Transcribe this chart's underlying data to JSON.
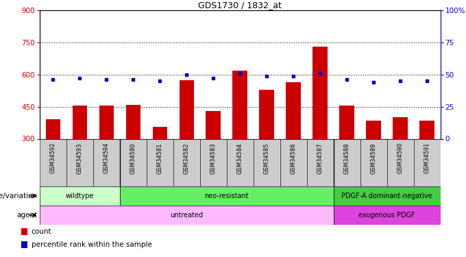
{
  "title": "GDS1730 / 1832_at",
  "samples": [
    "GSM34592",
    "GSM34593",
    "GSM34594",
    "GSM34580",
    "GSM34581",
    "GSM34582",
    "GSM34583",
    "GSM34584",
    "GSM34585",
    "GSM34586",
    "GSM34587",
    "GSM34588",
    "GSM34589",
    "GSM34590",
    "GSM34591"
  ],
  "counts": [
    390,
    455,
    455,
    460,
    355,
    575,
    430,
    620,
    530,
    565,
    730,
    455,
    385,
    400,
    385
  ],
  "percentile": [
    46,
    47,
    46,
    46,
    45,
    50,
    47,
    51,
    49,
    49,
    51,
    46,
    44,
    45,
    45
  ],
  "ylim_left": [
    300,
    900
  ],
  "ylim_right": [
    0,
    100
  ],
  "yticks_left": [
    300,
    450,
    600,
    750,
    900
  ],
  "yticks_right": [
    0,
    25,
    50,
    75,
    100
  ],
  "ytick_right_labels": [
    "0",
    "25",
    "50",
    "75",
    "100%"
  ],
  "bar_color": "#cc0000",
  "dot_color": "#0000cc",
  "title_color": "#000000",
  "left_axis_color": "#cc0000",
  "right_axis_color": "#0000cc",
  "genotype_groups": [
    {
      "label": "wildtype",
      "start": 0,
      "end": 3,
      "color": "#ccffcc"
    },
    {
      "label": "neo-resistant",
      "start": 3,
      "end": 11,
      "color": "#66ee66"
    },
    {
      "label": "PDGF-A dominant-negative",
      "start": 11,
      "end": 15,
      "color": "#44cc44"
    }
  ],
  "agent_groups": [
    {
      "label": "untreated",
      "start": 0,
      "end": 11,
      "color": "#ffbbff"
    },
    {
      "label": "exogenous PDGF",
      "start": 11,
      "end": 15,
      "color": "#dd44dd"
    }
  ],
  "legend_items": [
    {
      "color": "#cc0000",
      "label": "count"
    },
    {
      "color": "#0000cc",
      "label": "percentile rank within the sample"
    }
  ],
  "xlabel_genotype": "genotype/variation",
  "xlabel_agent": "agent",
  "gridlines": [
    750,
    600,
    450
  ],
  "group_dividers": [
    3,
    11
  ]
}
